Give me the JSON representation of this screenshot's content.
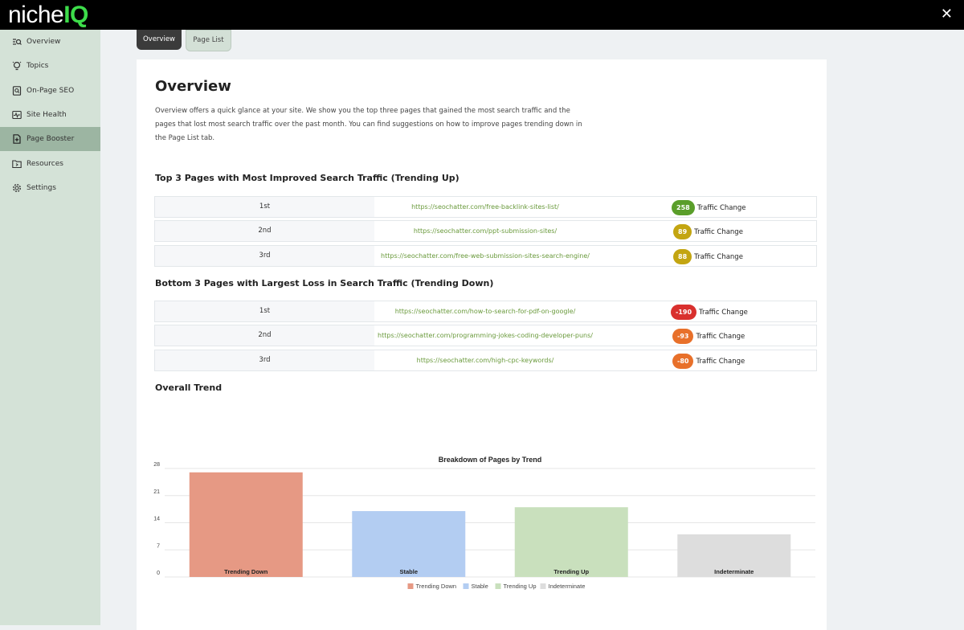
{
  "app": {
    "logo_text_1": "niche",
    "logo_text_2": "IQ"
  },
  "sidebar": {
    "items": [
      {
        "label": "Overview",
        "icon": "overview-icon"
      },
      {
        "label": "Topics",
        "icon": "lightbulb-icon"
      },
      {
        "label": "On-Page SEO",
        "icon": "document-search-icon"
      },
      {
        "label": "Site Health",
        "icon": "pulse-icon"
      },
      {
        "label": "Page Booster",
        "icon": "document-plus-icon",
        "active": true
      },
      {
        "label": "Resources",
        "icon": "folder-icon"
      },
      {
        "label": "Settings",
        "icon": "gear-icon"
      }
    ]
  },
  "tabs": [
    {
      "label": "Overview",
      "active": true
    },
    {
      "label": "Page List",
      "active": false
    }
  ],
  "overview": {
    "title": "Overview",
    "description": "Overview offers a quick glance at your site. We show you the top three pages that gained the most search traffic and the pages that lost most search traffic over the past month. You can find suggestions on how to improve pages trending down in the Page List tab."
  },
  "top_section": {
    "title": "Top 3 Pages with Most Improved Search Traffic (Trending Up)",
    "rows": [
      {
        "rank": "1st",
        "url": "https://seochatter.com/free-backlink-sites-list/",
        "change": "258",
        "color": "#5a9e2a",
        "label": "Traffic Change"
      },
      {
        "rank": "2nd",
        "url": "https://seochatter.com/ppt-submission-sites/",
        "change": "89",
        "color": "#c3a511",
        "label": "Traffic Change"
      },
      {
        "rank": "3rd",
        "url": "https://seochatter.com/free-web-submission-sites-search-engine/",
        "change": "88",
        "color": "#c3a511",
        "label": "Traffic Change"
      }
    ]
  },
  "bottom_section": {
    "title": "Bottom 3 Pages with Largest Loss in Search Traffic (Trending Down)",
    "rows": [
      {
        "rank": "1st",
        "url": "https://seochatter.com/how-to-search-for-pdf-on-google/",
        "change": "-190",
        "color": "#d9302e",
        "label": "Traffic Change"
      },
      {
        "rank": "2nd",
        "url": "https://seochatter.com/programming-jokes-coding-developer-puns/",
        "change": "-93",
        "color": "#e8702a",
        "label": "Traffic Change"
      },
      {
        "rank": "3rd",
        "url": "https://seochatter.com/high-cpc-keywords/",
        "change": "-80",
        "color": "#e8702a",
        "label": "Traffic Change"
      }
    ]
  },
  "trend_section": {
    "title": "Overall Trend"
  },
  "chart_data": {
    "type": "bar",
    "title": "Breakdown of Pages by Trend",
    "categories": [
      "Trending Down",
      "Stable",
      "Trending Up",
      "Indeterminate"
    ],
    "values": [
      27,
      17,
      18,
      11
    ],
    "colors": [
      "#e69984",
      "#b3cdf2",
      "#c9e0bd",
      "#dddddd"
    ],
    "ylim": [
      0,
      28
    ],
    "yticks": [
      0,
      7,
      14,
      21,
      28
    ],
    "legend": "bottom",
    "grid": true
  }
}
